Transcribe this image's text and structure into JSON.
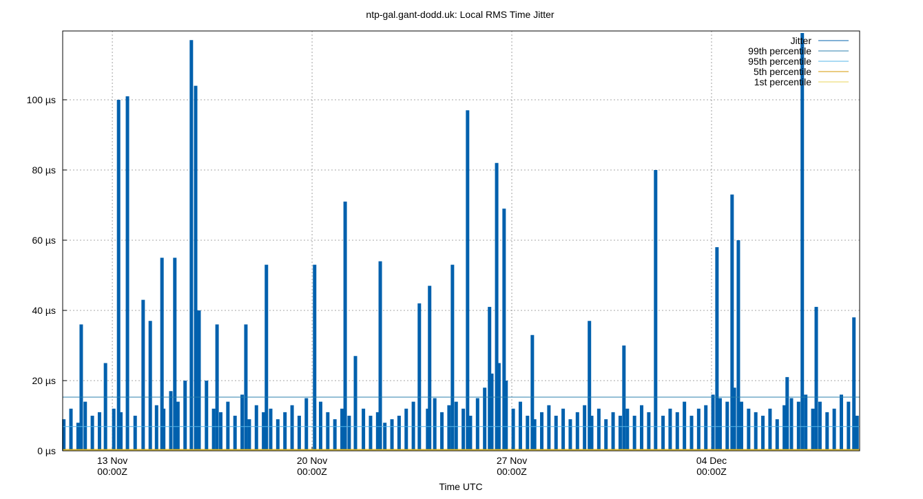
{
  "chart_data": {
    "type": "bar",
    "title": "ntp-gal.gant-dodd.uk: Local RMS Time Jitter",
    "x_label": "Time UTC",
    "xlim": [
      11.26,
      39.19
    ],
    "xticks": [
      {
        "value": 13,
        "label": [
          "13 Nov",
          "00:00Z"
        ]
      },
      {
        "value": 20,
        "label": [
          "20 Nov",
          "00:00Z"
        ]
      },
      {
        "value": 27,
        "label": [
          "27 Nov",
          "00:00Z"
        ]
      },
      {
        "value": 34,
        "label": [
          "04 Dec",
          "00:00Z"
        ]
      }
    ],
    "ylim": [
      0,
      119.6
    ],
    "yticks": [
      {
        "value": 0,
        "label": "0 µs"
      },
      {
        "value": 20,
        "label": "20 µs"
      },
      {
        "value": 40,
        "label": "40 µs"
      },
      {
        "value": 60,
        "label": "60 µs"
      },
      {
        "value": 80,
        "label": "80 µs"
      },
      {
        "value": 100,
        "label": "100 µs"
      }
    ],
    "grid": true,
    "legend": "top-right",
    "series": [
      {
        "name": "Jitter",
        "color": "#0060ad",
        "x": [
          11.3,
          11.55,
          11.8,
          11.91,
          12.05,
          12.3,
          12.55,
          12.76,
          13.05,
          13.22,
          13.3,
          13.53,
          13.8,
          14.08,
          14.33,
          14.55,
          14.74,
          14.8,
          15.05,
          15.19,
          15.3,
          15.55,
          15.77,
          15.92,
          16.04,
          16.3,
          16.55,
          16.67,
          16.8,
          17.05,
          17.3,
          17.55,
          17.68,
          17.8,
          18.05,
          18.3,
          18.4,
          18.55,
          18.8,
          19.05,
          19.3,
          19.55,
          19.8,
          20.09,
          20.3,
          20.55,
          20.8,
          21.05,
          21.16,
          21.3,
          21.52,
          21.8,
          22.05,
          22.3,
          22.39,
          22.55,
          22.8,
          23.05,
          23.3,
          23.55,
          23.76,
          24.05,
          24.12,
          24.3,
          24.55,
          24.8,
          24.92,
          25.05,
          25.3,
          25.45,
          25.55,
          25.8,
          26.05,
          26.22,
          26.3,
          26.47,
          26.55,
          26.73,
          26.8,
          27.05,
          27.3,
          27.55,
          27.72,
          27.8,
          28.05,
          28.3,
          28.55,
          28.8,
          29.05,
          29.3,
          29.55,
          29.72,
          29.8,
          30.05,
          30.3,
          30.55,
          30.8,
          30.93,
          31.05,
          31.3,
          31.55,
          31.8,
          32.04,
          32.3,
          32.55,
          32.8,
          33.05,
          33.3,
          33.55,
          33.8,
          34.05,
          34.19,
          34.3,
          34.55,
          34.72,
          34.8,
          34.94,
          35.05,
          35.3,
          35.55,
          35.8,
          36.05,
          36.3,
          36.55,
          36.65,
          36.8,
          37.05,
          37.18,
          37.3,
          37.55,
          37.67,
          37.8,
          38.05,
          38.3,
          38.55,
          38.8,
          38.99,
          39.1
        ],
        "values": [
          9,
          12,
          8,
          36,
          14,
          10,
          11,
          25,
          12,
          100,
          11,
          101,
          10,
          43,
          37,
          13,
          55,
          12,
          17,
          55,
          14,
          20,
          117,
          104,
          40,
          20,
          12,
          36,
          11,
          14,
          10,
          16,
          36,
          9,
          13,
          11,
          53,
          12,
          9,
          11,
          13,
          10,
          15,
          53,
          14,
          11,
          9,
          12,
          71,
          10,
          27,
          12,
          10,
          11,
          54,
          8,
          9,
          10,
          12,
          14,
          42,
          12,
          47,
          15,
          11,
          13,
          53,
          14,
          12,
          97,
          10,
          15,
          18,
          41,
          22,
          82,
          25,
          69,
          20,
          12,
          14,
          10,
          33,
          9,
          11,
          13,
          10,
          12,
          9,
          11,
          13,
          37,
          10,
          12,
          9,
          11,
          10,
          30,
          12,
          10,
          13,
          11,
          80,
          10,
          12,
          11,
          14,
          10,
          12,
          13,
          16,
          58,
          15,
          14,
          73,
          18,
          60,
          14,
          12,
          11,
          10,
          12,
          9,
          13,
          21,
          15,
          14,
          119,
          16,
          12,
          41,
          14,
          11,
          12,
          16,
          14,
          38,
          10
        ]
      },
      {
        "name": "99th percentile",
        "color": "#2a7fae",
        "value": 15.3
      },
      {
        "name": "95th percentile",
        "color": "#56b4e9",
        "value": 6.9
      },
      {
        "name": "5th percentile",
        "color": "#d49a00",
        "value": 0.4
      },
      {
        "name": "1st percentile",
        "color": "#e8d45a",
        "value": 0.2
      }
    ]
  }
}
